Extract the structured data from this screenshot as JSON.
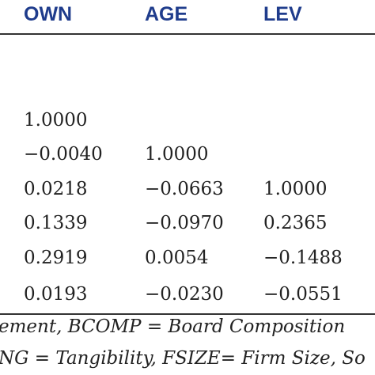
{
  "table": {
    "header": [
      "OWN",
      "AGE",
      "LEV"
    ],
    "rows": [
      [
        "1.0000"
      ],
      [
        "−0.0040",
        "1.0000"
      ],
      [
        "0.0218",
        "−0.0663",
        "1.0000"
      ],
      [
        "0.1339",
        "−0.0970",
        "0.2365"
      ],
      [
        "0.2919",
        "0.0054",
        "−0.1488"
      ],
      [
        "0.0193",
        "−0.0230",
        "−0.0551"
      ]
    ]
  },
  "notes": [
    "ement, BCOMP = Board Composition",
    "NG = Tangibility, FSIZE= Firm Size, So"
  ]
}
